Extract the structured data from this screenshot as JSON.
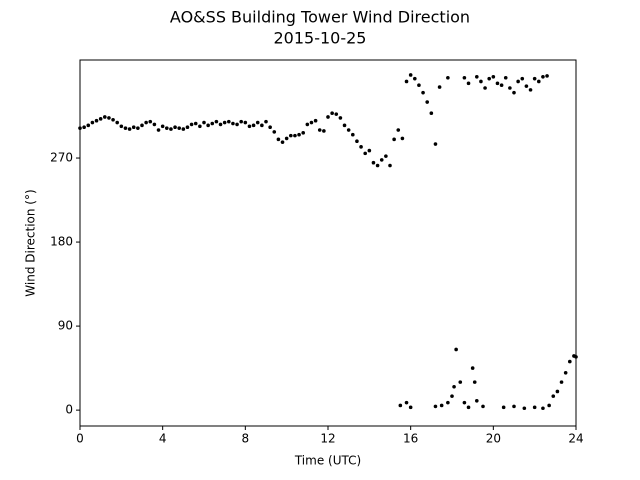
{
  "chart_data": {
    "type": "scatter",
    "title": "AO&SS Building Tower Wind Direction",
    "subtitle": "2015-10-25",
    "x_label": "Time (UTC)",
    "y_label": "Wind Direction (°)",
    "xlim": [
      0,
      24
    ],
    "xticks": [
      0,
      4,
      8,
      12,
      16,
      20,
      24
    ],
    "ylim": [
      -17,
      375
    ],
    "yticks": [
      0,
      90,
      180,
      270
    ],
    "grid": false,
    "series": [
      {
        "color": "#000000",
        "x": [
          0,
          0.2,
          0.4,
          0.6,
          0.8,
          1.0,
          1.2,
          1.4,
          1.6,
          1.8,
          2.0,
          2.2,
          2.4,
          2.6,
          2.8,
          3.0,
          3.2,
          3.4,
          3.6,
          3.8,
          4.0,
          4.2,
          4.4,
          4.6,
          4.8,
          5.0,
          5.2,
          5.4,
          5.6,
          5.8,
          6.0,
          6.2,
          6.4,
          6.6,
          6.8,
          7.0,
          7.2,
          7.4,
          7.6,
          7.8,
          8.0,
          8.2,
          8.4,
          8.6,
          8.8,
          9.0,
          9.2,
          9.4,
          9.6,
          9.8,
          10.0,
          10.2,
          10.4,
          10.6,
          10.8,
          11.0,
          11.2,
          11.4,
          11.6,
          11.8,
          12.0,
          12.2,
          12.4,
          12.6,
          12.8,
          13.0,
          13.2,
          13.4,
          13.6,
          13.8,
          14.0,
          14.2,
          14.4,
          14.6,
          14.8,
          15.0,
          15.2,
          15.4,
          15.6,
          15.8,
          16.0,
          16.2,
          16.4,
          16.6,
          16.8,
          17.0,
          17.2,
          17.4,
          17.8,
          18.6,
          18.8,
          19.2,
          19.4,
          19.6,
          19.8,
          20.0,
          20.2,
          20.4,
          20.6,
          20.8,
          21.0,
          21.2,
          21.4,
          21.6,
          21.8,
          22.0,
          22.2,
          22.4,
          22.6,
          15.5,
          15.8,
          16.0,
          17.2,
          17.5,
          17.8,
          18.0,
          18.1,
          18.2,
          18.4,
          18.6,
          18.8,
          19.0,
          19.1,
          19.2,
          19.5,
          20.5,
          21.0,
          21.5,
          22.0,
          22.4,
          22.7,
          22.9,
          23.1,
          23.3,
          23.5,
          23.7,
          23.9,
          24.0
        ],
        "values": [
          302,
          303,
          305,
          308,
          310,
          312,
          314,
          313,
          311,
          308,
          304,
          302,
          301,
          303,
          302,
          305,
          308,
          309,
          306,
          300,
          304,
          302,
          301,
          303,
          302,
          301,
          303,
          306,
          307,
          304,
          308,
          305,
          307,
          309,
          306,
          308,
          309,
          307,
          306,
          309,
          308,
          304,
          305,
          308,
          305,
          309,
          303,
          298,
          290,
          287,
          291,
          294,
          294,
          295,
          297,
          306,
          308,
          310,
          300,
          299,
          314,
          318,
          317,
          313,
          305,
          300,
          295,
          288,
          282,
          275,
          278,
          265,
          262,
          268,
          272,
          262,
          290,
          300,
          291,
          352,
          359,
          355,
          348,
          340,
          330,
          318,
          285,
          346,
          356,
          356,
          350,
          357,
          352,
          345,
          355,
          357,
          350,
          348,
          356,
          345,
          340,
          352,
          355,
          347,
          343,
          355,
          352,
          357,
          358,
          5,
          8,
          3,
          4,
          5,
          8,
          15,
          25,
          65,
          30,
          8,
          3,
          45,
          30,
          10,
          4,
          3,
          4,
          2,
          3,
          2,
          5,
          15,
          20,
          30,
          40,
          52,
          58,
          57
        ]
      }
    ]
  }
}
